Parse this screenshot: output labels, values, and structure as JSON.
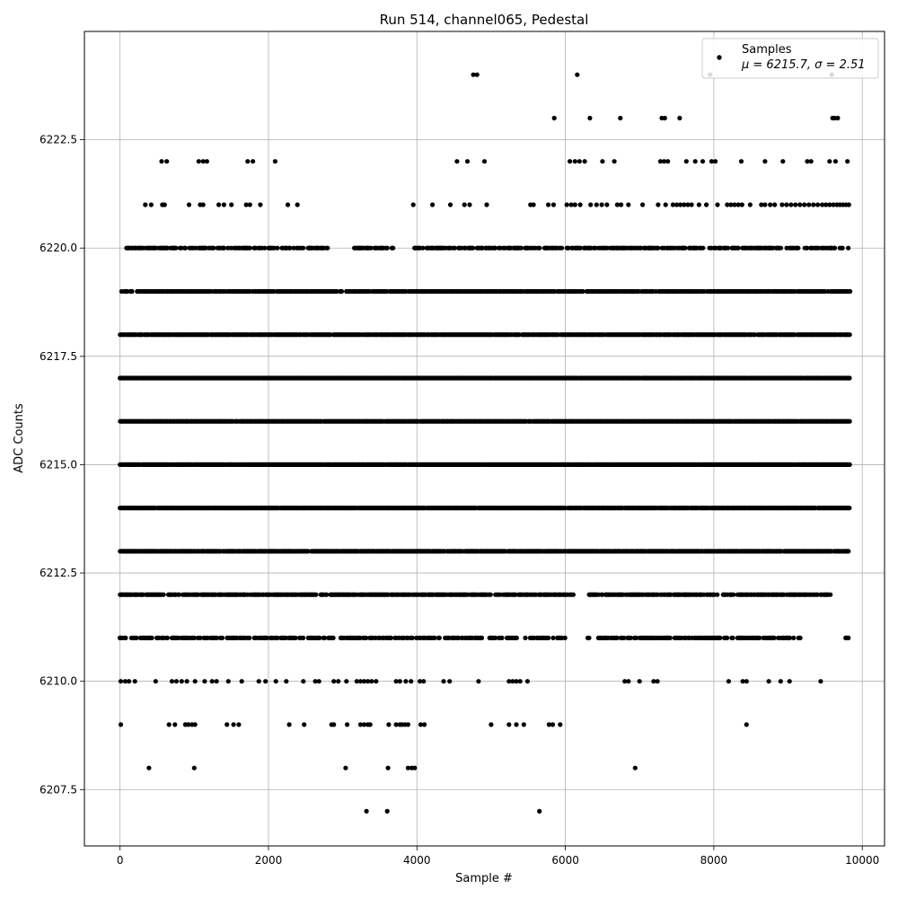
{
  "chart_data": {
    "type": "scatter",
    "title": "Run 514, channel065, Pedestal",
    "xlabel": "Sample #",
    "ylabel": "ADC Counts",
    "xlim": [
      -480,
      10300
    ],
    "ylim": [
      6206.2,
      6225.0
    ],
    "xticks": [
      0,
      2000,
      4000,
      6000,
      8000,
      10000
    ],
    "yticks": [
      6207.5,
      6210.0,
      6212.5,
      6215.0,
      6217.5,
      6220.0,
      6222.5
    ],
    "xtick_labels": [
      "0",
      "2000",
      "4000",
      "6000",
      "8000",
      "10000"
    ],
    "ytick_labels": [
      "6207.5",
      "6210.0",
      "6212.5",
      "6215.0",
      "6217.5",
      "6220.0",
      "6222.5"
    ],
    "grid": true,
    "legend_position": "top-right",
    "legend": {
      "label": "Samples",
      "stats": "μ = 6215.7, σ = 2.51"
    },
    "marker_color": "#000000",
    "series": [
      {
        "name": "Samples",
        "bands": [
          {
            "y": 6207,
            "x": [
              3320,
              3600,
              5650
            ]
          },
          {
            "y": 6208,
            "x": [
              390,
              1000,
              3040,
              3610,
              3880,
              3930,
              3970,
              6940
            ]
          },
          {
            "y": 6209,
            "x": [
              10,
              660,
              740,
              880,
              920,
              970,
              1010,
              1440,
              1530,
              1600,
              2280,
              2480,
              2850,
              2880,
              3060,
              3240,
              3290,
              3340,
              3370,
              3620,
              3720,
              3770,
              3800,
              3840,
              3880,
              4050,
              4100,
              5000,
              5240,
              5340,
              5440,
              5780,
              5830,
              5930,
              8440
            ]
          },
          {
            "y": 6210,
            "x": [
              10,
              70,
              120,
              200,
              480,
              700,
              760,
              830,
              900,
              1010,
              1140,
              1240,
              1300,
              1460,
              1640,
              1870,
              1960,
              2100,
              2240,
              2470,
              2630,
              2680,
              2880,
              2940,
              3050,
              3190,
              3240,
              3290,
              3340,
              3390,
              3450,
              3720,
              3770,
              3850,
              3920,
              4040,
              4090,
              4360,
              4440,
              4830,
              5240,
              5290,
              5340,
              5390,
              5490,
              6800,
              6850,
              7000,
              7190,
              7240,
              8200,
              8390,
              8440,
              8740,
              8900,
              9020,
              9440
            ]
          },
          {
            "y": 6211,
            "series": "dense",
            "from": 0,
            "to": 9820,
            "density": 0.55,
            "gaps": [
              [
                6000,
                6300
              ],
              [
                9200,
                9760
              ]
            ],
            "extra": [
              9780
            ]
          },
          {
            "y": 6212,
            "series": "dense",
            "from": 0,
            "to": 9580,
            "density": 0.75,
            "gaps": [
              [
                5000,
                5050
              ],
              [
                6120,
                6300
              ]
            ]
          },
          {
            "y": 6213,
            "series": "dense",
            "from": 0,
            "to": 9820,
            "density": 0.9,
            "gaps": []
          },
          {
            "y": 6214,
            "series": "dense",
            "from": 0,
            "to": 9840,
            "density": 0.98,
            "gaps": []
          },
          {
            "y": 6215,
            "series": "dense",
            "from": 0,
            "to": 9840,
            "density": 0.98,
            "gaps": []
          },
          {
            "y": 6216,
            "series": "dense",
            "from": 0,
            "to": 9840,
            "density": 0.98,
            "gaps": []
          },
          {
            "y": 6217,
            "series": "dense",
            "from": 0,
            "to": 9840,
            "density": 0.98,
            "gaps": []
          },
          {
            "y": 6218,
            "series": "dense",
            "from": 0,
            "to": 9840,
            "density": 0.92,
            "gaps": []
          },
          {
            "y": 6219,
            "series": "dense",
            "from": 20,
            "to": 9840,
            "density": 0.8,
            "gaps": []
          },
          {
            "y": 6220,
            "series": "dense",
            "from": 90,
            "to": 9820,
            "density": 0.55,
            "gaps": [
              [
                2800,
                3150
              ],
              [
                3700,
                3900
              ]
            ]
          },
          {
            "y": 6221,
            "x": [
              340,
              420,
              570,
              600,
              930,
              1080,
              1120,
              1330,
              1400,
              1500,
              1700,
              1750,
              1890,
              2260,
              2390,
              3950,
              4210,
              4450,
              4640,
              4710,
              4940,
              5530,
              5570,
              5770,
              5840,
              6020,
              6080,
              6130,
              6200,
              6340,
              6420,
              6490,
              6560,
              6700,
              6750,
              6850,
              7040,
              7250,
              7350,
              7450,
              7500,
              7550,
              7600,
              7650,
              7700,
              7800,
              7900,
              8050,
              8180,
              8230,
              8280,
              8330,
              8380,
              8490,
              8640,
              8690,
              8760,
              8820,
              8920,
              8980,
              9040,
              9100,
              9160,
              9220,
              9280,
              9340,
              9400,
              9460,
              9510,
              9560,
              9610,
              9660,
              9700,
              9740,
              9780,
              9820
            ]
          },
          {
            "y": 6222,
            "x": [
              560,
              630,
              1060,
              1120,
              1170,
              1720,
              1790,
              2090,
              4540,
              4680,
              4910,
              6060,
              6130,
              6190,
              6260,
              6500,
              6660,
              7280,
              7330,
              7380,
              7630,
              7750,
              7850,
              7970,
              8020,
              8370,
              8690,
              8930,
              9260,
              9310,
              9560,
              9640,
              9800
            ]
          },
          {
            "y": 6223,
            "x": [
              5850,
              6330,
              6740,
              7300,
              7340,
              7540,
              9600,
              9630,
              9670
            ]
          },
          {
            "y": 6224,
            "x": [
              4760,
              4810,
              6160,
              7950,
              9590
            ]
          }
        ]
      }
    ]
  }
}
